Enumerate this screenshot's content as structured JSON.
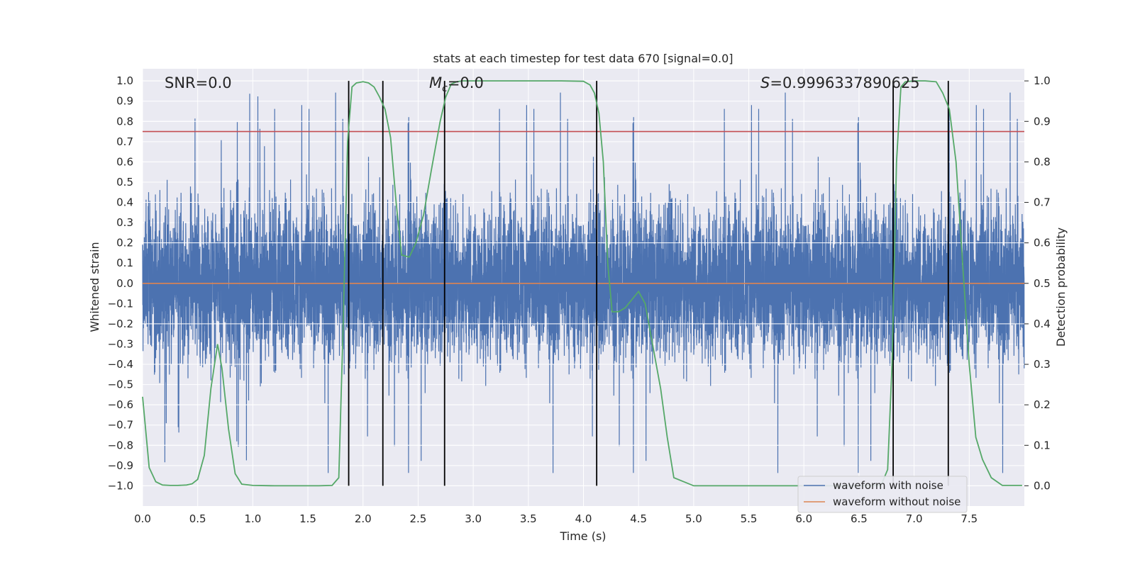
{
  "chart_data": {
    "type": "line",
    "title": "stats at each timestep for test data 670 [signal=0.0]",
    "xlabel": "Time (s)",
    "ylabel": "Whitened strain",
    "ylabel_right": "Detection probability",
    "xlim": [
      0.0,
      8.0
    ],
    "ylim": [
      -1.1,
      1.06
    ],
    "ylim_right": [
      -0.05,
      1.03
    ],
    "x_ticks": [
      "0.0",
      "0.5",
      "1.0",
      "1.5",
      "2.0",
      "2.5",
      "3.0",
      "3.5",
      "4.0",
      "4.5",
      "5.0",
      "5.5",
      "6.0",
      "6.5",
      "7.0",
      "7.5"
    ],
    "y_ticks": [
      "1.0",
      "0.9",
      "0.8",
      "0.7",
      "0.6",
      "0.5",
      "0.4",
      "0.3",
      "0.2",
      "0.1",
      "0.0",
      "-0.1",
      "-0.2",
      "-0.3",
      "-0.4",
      "-0.5",
      "-0.6",
      "-0.7",
      "-0.8",
      "-0.9",
      "-1.0"
    ],
    "y_ticks_right": [
      "1.0",
      "0.9",
      "0.8",
      "0.7",
      "0.6",
      "0.5",
      "0.4",
      "0.3",
      "0.2",
      "0.1",
      "0.0"
    ],
    "grid": true,
    "legend_position": "lower-right",
    "annotations": {
      "snr": "SNR=0.0",
      "mc_symbol": "M",
      "mc_sub": "c",
      "mc_value": "=0.0",
      "s_symbol": "S",
      "s_value": "=0.9996337890625"
    },
    "threshold_strain": 0.75,
    "threshold_line_color": "#c44e52",
    "noise_series": {
      "name": "waveform with noise",
      "color": "#4c72b0",
      "samples": 8192,
      "typical_amplitude": 0.25,
      "peak_amplitude": 0.97
    },
    "clean_series": {
      "name": "waveform without noise",
      "color": "#dd8452",
      "value": 0.0
    },
    "probability_series": {
      "name": "Detection probability",
      "color": "#55a868",
      "x": [
        0.0,
        0.06,
        0.12,
        0.18,
        0.25,
        0.32,
        0.4,
        0.45,
        0.5,
        0.56,
        0.62,
        0.68,
        0.72,
        0.78,
        0.84,
        0.9,
        1.0,
        1.2,
        1.4,
        1.6,
        1.72,
        1.78,
        1.82,
        1.86,
        1.9,
        1.94,
        2.0,
        2.05,
        2.1,
        2.15,
        2.2,
        2.25,
        2.3,
        2.35,
        2.42,
        2.48,
        2.55,
        2.62,
        2.7,
        2.75,
        2.8,
        2.85,
        2.9,
        3.0,
        3.2,
        3.5,
        3.8,
        4.0,
        4.06,
        4.1,
        4.14,
        4.18,
        4.22,
        4.26,
        4.32,
        4.38,
        4.44,
        4.5,
        4.56,
        4.62,
        4.7,
        4.76,
        4.82,
        5.0,
        5.5,
        6.0,
        6.5,
        6.7,
        6.76,
        6.8,
        6.84,
        6.88,
        6.92,
        7.0,
        7.1,
        7.2,
        7.26,
        7.32,
        7.38,
        7.44,
        7.5,
        7.56,
        7.62,
        7.7,
        7.8,
        7.9,
        7.98
      ],
      "y": [
        0.22,
        0.045,
        0.01,
        0.002,
        0.001,
        0.001,
        0.002,
        0.005,
        0.016,
        0.075,
        0.24,
        0.35,
        0.29,
        0.14,
        0.03,
        0.004,
        0.001,
        0.0,
        0.0,
        0.0,
        0.001,
        0.02,
        0.4,
        0.85,
        0.985,
        0.995,
        0.998,
        0.995,
        0.985,
        0.96,
        0.93,
        0.86,
        0.7,
        0.57,
        0.565,
        0.6,
        0.67,
        0.78,
        0.9,
        0.96,
        0.992,
        0.998,
        1.0,
        1.0,
        1.0,
        1.0,
        1.0,
        0.999,
        0.99,
        0.97,
        0.92,
        0.8,
        0.55,
        0.43,
        0.43,
        0.44,
        0.46,
        0.48,
        0.45,
        0.36,
        0.24,
        0.12,
        0.02,
        0.0,
        0.0,
        0.0,
        0.0,
        0.001,
        0.04,
        0.3,
        0.8,
        0.985,
        0.998,
        1.0,
        1.0,
        0.998,
        0.97,
        0.93,
        0.8,
        0.55,
        0.3,
        0.12,
        0.065,
        0.02,
        0.001,
        0.001,
        0.001
      ]
    },
    "vertical_markers": [
      1.87,
      2.18,
      2.74,
      4.12,
      6.81,
      7.31
    ],
    "vertical_marker_color": "#000000"
  }
}
